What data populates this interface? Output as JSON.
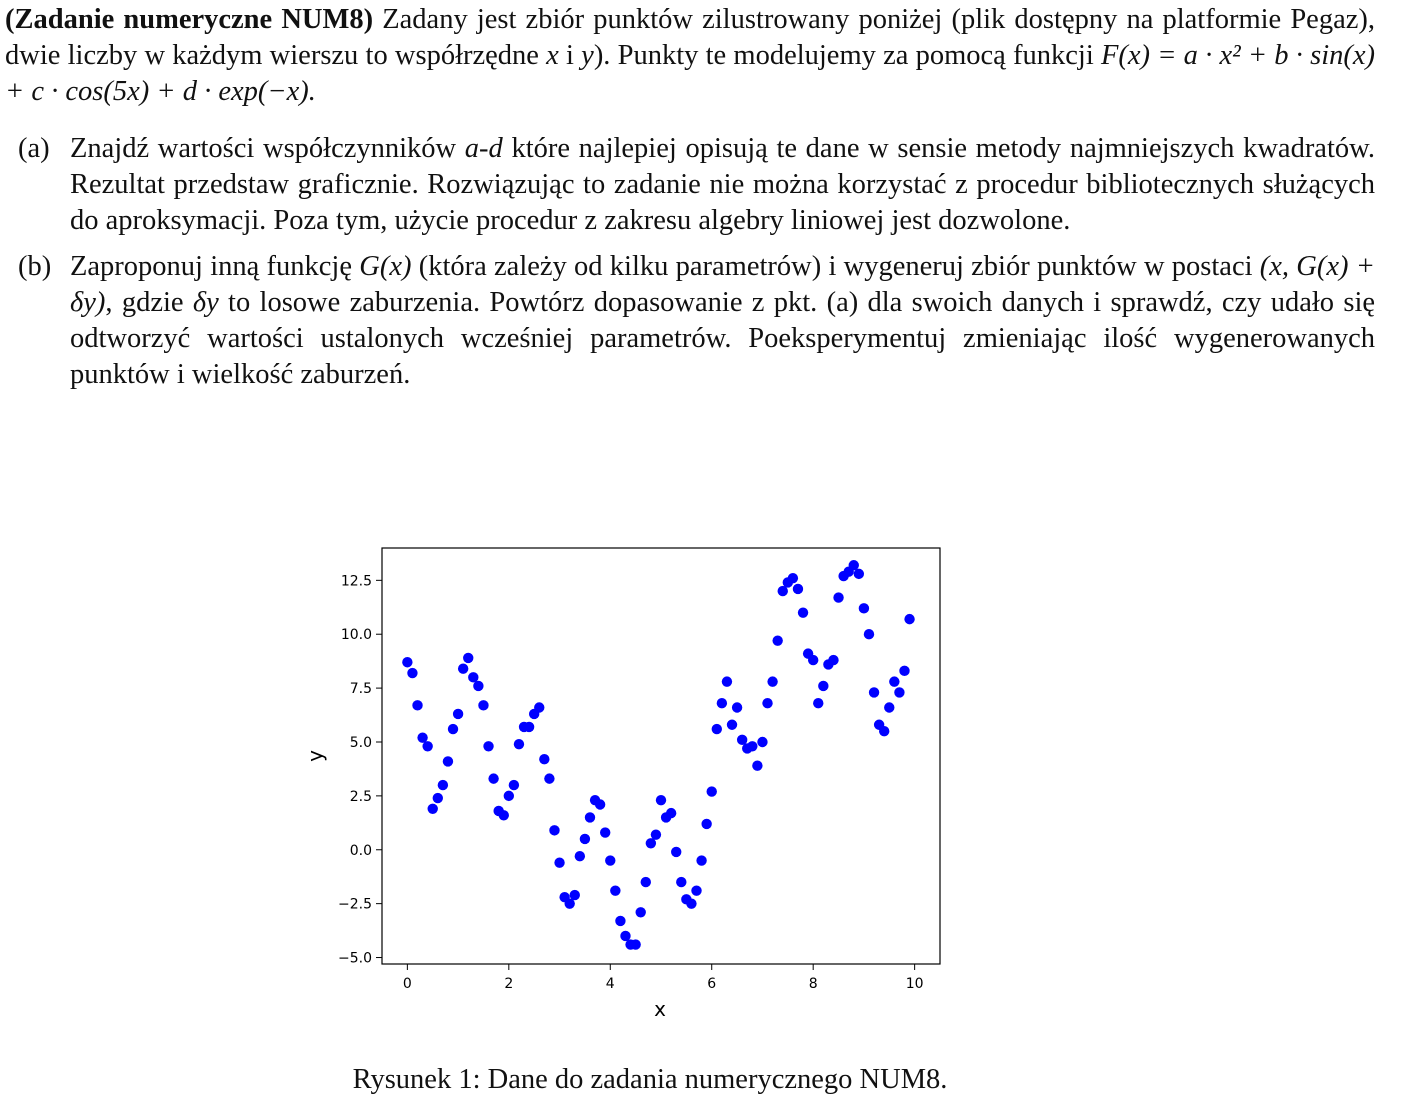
{
  "intro": {
    "heading": "(Zadanie numeryczne NUM8)",
    "text1": " Zadany jest zbiór punktów zilustrowany poniżej (plik dostępny na platformie Pegaz), dwie liczby w każdym wierszu to współrzędne ",
    "var_x": "x",
    "conj": " i ",
    "var_y": "y",
    "text2": "). Punkty te modelujemy za pomocą funkcji ",
    "formula": "F(x) = a · x² + b · sin(x) + c · cos(5x) + d · exp(−x)."
  },
  "items": [
    {
      "label": "(a)",
      "text1": "Znajdź wartości współczynników ",
      "range": "a-d",
      "text2": " które najlepiej opisują te dane w sensie metody najmniejszych kwadratów. Rezultat przedstaw graficznie. Rozwiązując to zadanie nie można korzystać z procedur bibliotecznych służących do aproksymacji. Poza tym, użycie procedur z zakresu algebry liniowej jest dozwolone."
    },
    {
      "label": "(b)",
      "text1": "Zaproponuj inną funkcję ",
      "func": "G(x)",
      "text2": " (która zależy od kilku parametrów) i wygeneruj zbiór punktów w postaci ",
      "pair": "(x, G(x) + δy)",
      "text3": ", gdzie ",
      "delta": "δy",
      "text4": " to losowe zaburzenia. Powtórz dopasowanie z pkt. (a) dla swoich danych i sprawdź, czy udało się odtworzyć wartości ustalonych wcześniej parametrów. Poeksperymentuj zmieniając ilość wygenerowanych punktów i wielkość zaburzeń."
    }
  ],
  "caption": "Rysunek 1: Dane do zadania numerycznego NUM8.",
  "chart_data": {
    "type": "scatter",
    "title": "",
    "xlabel": "x",
    "ylabel": "y",
    "xlim": [
      -0.5,
      10.5
    ],
    "ylim": [
      -5.3,
      14.0
    ],
    "xticks": [
      0,
      2,
      4,
      6,
      8,
      10
    ],
    "xtick_labels": [
      "0",
      "2",
      "4",
      "6",
      "8",
      "10"
    ],
    "yticks": [
      -5.0,
      -2.5,
      0.0,
      2.5,
      5.0,
      7.5,
      10.0,
      12.5
    ],
    "ytick_labels": [
      "−5.0",
      "−2.5",
      "0.0",
      "2.5",
      "5.0",
      "7.5",
      "10.0",
      "12.5"
    ],
    "grid": false,
    "marker_color": "#0000ff",
    "x": [
      0.0,
      0.1,
      0.2,
      0.3,
      0.4,
      0.5,
      0.6,
      0.7,
      0.8,
      0.9,
      1.0,
      1.1,
      1.2,
      1.3,
      1.4,
      1.5,
      1.6,
      1.7,
      1.8,
      1.9,
      2.0,
      2.1,
      2.2,
      2.3,
      2.4,
      2.5,
      2.6,
      2.7,
      2.8,
      2.9,
      3.0,
      3.1,
      3.2,
      3.3,
      3.4,
      3.5,
      3.6,
      3.7,
      3.8,
      3.9,
      4.0,
      4.1,
      4.2,
      4.3,
      4.4,
      4.5,
      4.6,
      4.7,
      4.8,
      4.9,
      5.0,
      5.1,
      5.2,
      5.3,
      5.4,
      5.5,
      5.6,
      5.7,
      5.8,
      5.9,
      6.0,
      6.1,
      6.2,
      6.3,
      6.4,
      6.5,
      6.6,
      6.7,
      6.8,
      6.9,
      7.0,
      7.1,
      7.2,
      7.3,
      7.4,
      7.5,
      7.6,
      7.7,
      7.8,
      7.9,
      8.0,
      8.1,
      8.2,
      8.3,
      8.4,
      8.5,
      8.6,
      8.7,
      8.8,
      8.9,
      9.0,
      9.1,
      9.2,
      9.3,
      9.4,
      9.5,
      9.6,
      9.7,
      9.8,
      9.9
    ],
    "y": [
      8.7,
      8.2,
      6.7,
      5.2,
      4.8,
      1.9,
      2.4,
      3.0,
      4.1,
      5.6,
      6.3,
      8.4,
      8.9,
      8.0,
      7.6,
      6.7,
      4.8,
      3.3,
      1.8,
      1.6,
      2.5,
      3.0,
      4.9,
      5.7,
      5.7,
      6.3,
      6.6,
      4.2,
      3.3,
      0.9,
      -0.6,
      -2.2,
      -2.5,
      -2.1,
      -0.3,
      0.5,
      1.5,
      2.3,
      2.1,
      0.8,
      -0.5,
      -1.9,
      -3.3,
      -4.0,
      -4.4,
      -4.4,
      -2.9,
      -1.5,
      0.3,
      0.7,
      2.3,
      1.5,
      1.7,
      -0.1,
      -1.5,
      -2.3,
      -2.5,
      -1.9,
      -0.5,
      1.2,
      2.7,
      5.6,
      6.8,
      7.8,
      5.8,
      6.6,
      5.1,
      4.7,
      4.8,
      3.9,
      5.0,
      6.8,
      7.8,
      9.7,
      12.0,
      12.4,
      12.6,
      12.1,
      11.0,
      9.1,
      8.8,
      6.8,
      7.6,
      8.6,
      8.8,
      11.7,
      12.7,
      12.9,
      13.2,
      12.8,
      11.2,
      10.0,
      7.3,
      5.8,
      5.5,
      6.6,
      7.8,
      7.3,
      8.3,
      10.7
    ]
  }
}
